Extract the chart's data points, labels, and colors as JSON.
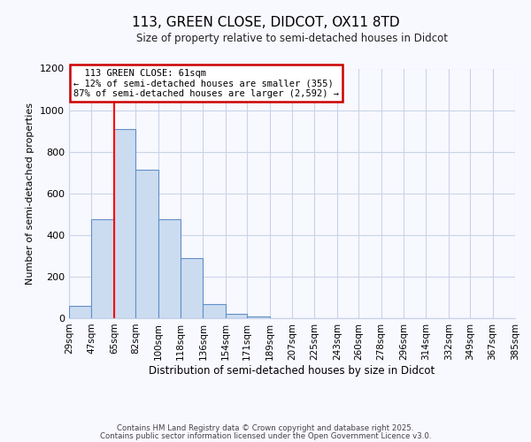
{
  "title": "113, GREEN CLOSE, DIDCOT, OX11 8TD",
  "subtitle": "Size of property relative to semi-detached houses in Didcot",
  "xlabel": "Distribution of semi-detached houses by size in Didcot",
  "ylabel": "Number of semi-detached properties",
  "footer_line1": "Contains HM Land Registry data © Crown copyright and database right 2025.",
  "footer_line2": "Contains public sector information licensed under the Open Government Licence v3.0.",
  "bin_edges": [
    29,
    47,
    65,
    82,
    100,
    118,
    136,
    154,
    171,
    189,
    207,
    225,
    243,
    260,
    278,
    296,
    314,
    332,
    349,
    367,
    385
  ],
  "bin_labels": [
    "29sqm",
    "47sqm",
    "65sqm",
    "82sqm",
    "100sqm",
    "118sqm",
    "136sqm",
    "154sqm",
    "171sqm",
    "189sqm",
    "207sqm",
    "225sqm",
    "243sqm",
    "260sqm",
    "278sqm",
    "296sqm",
    "314sqm",
    "332sqm",
    "349sqm",
    "367sqm",
    "385sqm"
  ],
  "bar_heights": [
    60,
    475,
    910,
    715,
    475,
    290,
    70,
    20,
    10,
    0,
    0,
    0,
    0,
    0,
    0,
    0,
    0,
    0,
    0,
    0
  ],
  "bar_color": "#ccdcf0",
  "bar_edge_color": "#6090c8",
  "ylim": [
    0,
    1200
  ],
  "yticks": [
    0,
    200,
    400,
    600,
    800,
    1000,
    1200
  ],
  "red_line_x": 65,
  "annotation_title": "113 GREEN CLOSE: 61sqm",
  "annotation_line1": "← 12% of semi-detached houses are smaller (355)",
  "annotation_line2": "87% of semi-detached houses are larger (2,592) →",
  "annotation_box_color": "#ffffff",
  "annotation_border_color": "#cc0000",
  "background_color": "#f8f8ff",
  "grid_color": "#c8d4e8",
  "title_fontsize": 11,
  "subtitle_fontsize": 8.5,
  "ylabel_fontsize": 8,
  "xlabel_fontsize": 8.5,
  "ytick_fontsize": 8,
  "xtick_fontsize": 7.5
}
